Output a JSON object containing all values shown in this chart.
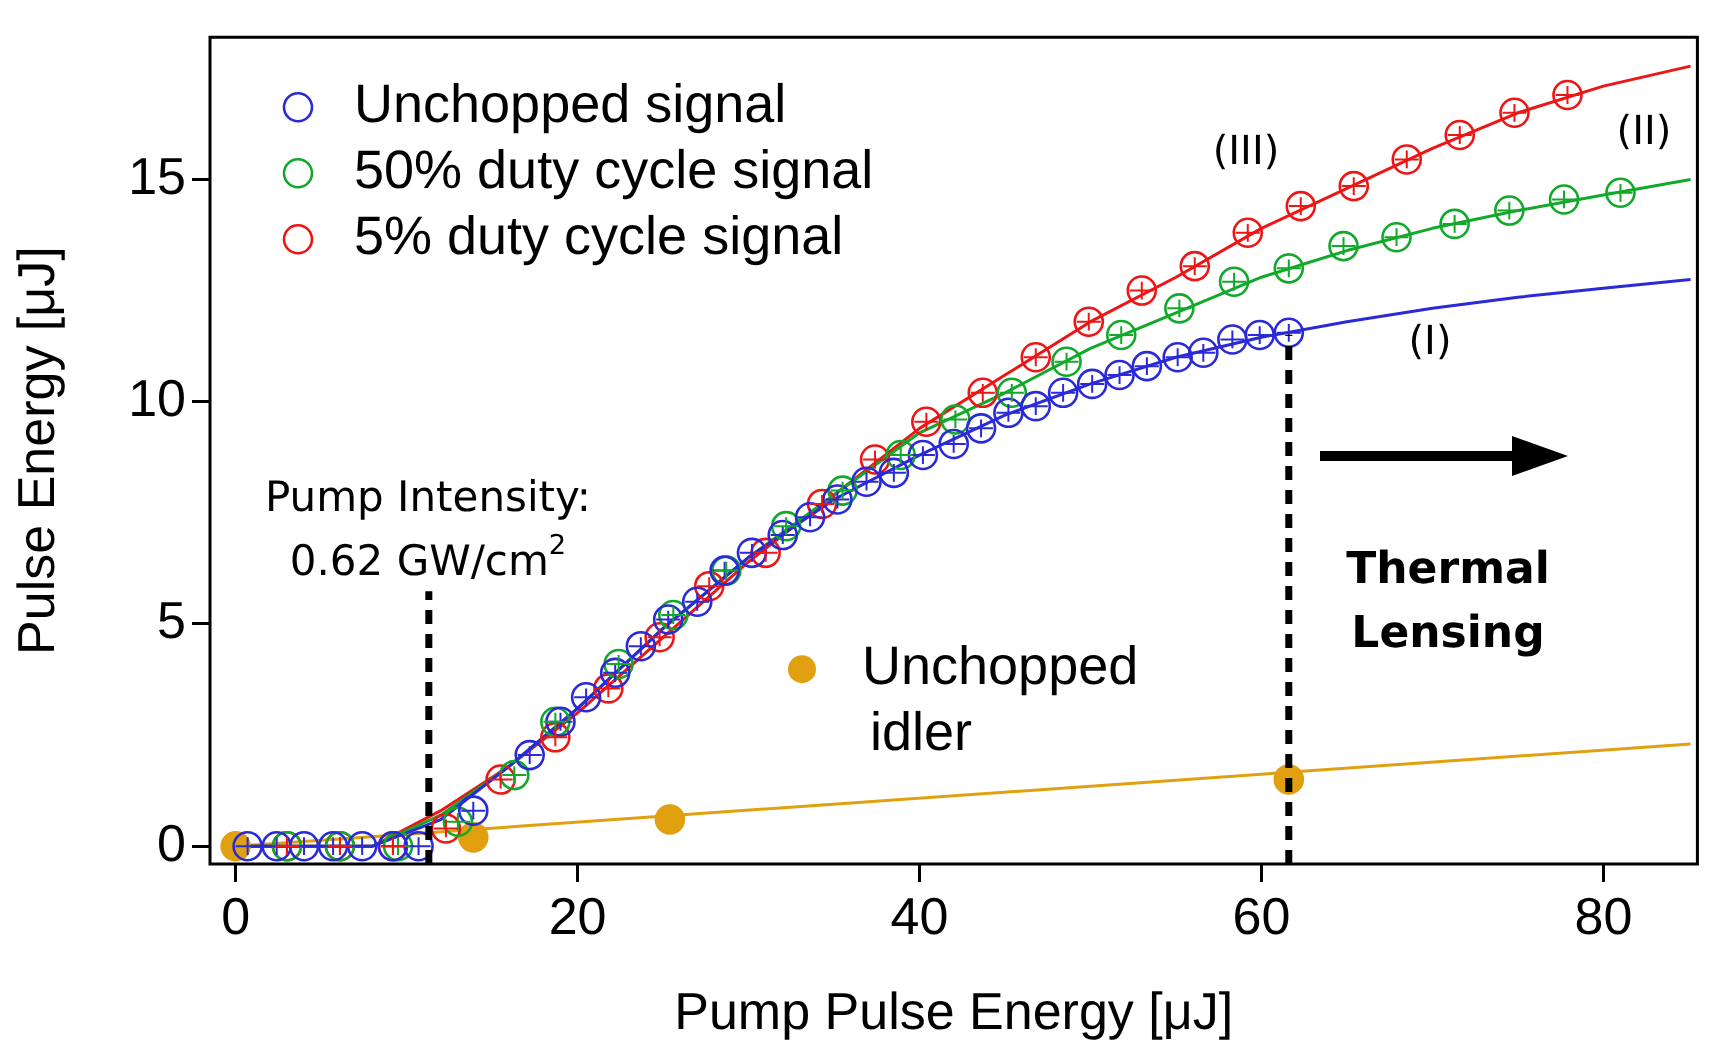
{
  "chart_data": {
    "type": "scatter",
    "xlabel": "Pump Pulse Energy [μJ]",
    "ylabel": "Pulse Energy [μJ]",
    "xlim": [
      -1.5,
      85.5
    ],
    "ylim": [
      -0.4,
      18.2
    ],
    "xticks": [
      0,
      20,
      40,
      60,
      80
    ],
    "yticks": [
      0,
      5,
      10,
      15
    ],
    "grid": false,
    "legend": "top left",
    "series": [
      {
        "name": "Unchopped signal",
        "type": "scatter",
        "marker": "circle",
        "color": "#2a2ad8",
        "x": [
          0.7,
          2.4,
          4.0,
          5.7,
          7.4,
          9.2,
          10.7,
          13.9,
          17.2,
          19.0,
          20.5,
          22.2,
          23.7,
          25.3,
          27.0,
          28.6,
          30.2,
          32.0,
          33.6,
          35.2,
          36.9,
          38.5,
          40.2,
          42.0,
          43.6,
          45.2,
          46.8,
          48.4,
          50.1,
          51.7,
          53.3,
          55.1,
          56.6,
          58.3,
          59.9,
          61.6
        ],
        "values": [
          0,
          0,
          0,
          0,
          0,
          0,
          0,
          0.8,
          2.05,
          2.8,
          3.35,
          3.9,
          4.5,
          5.1,
          5.5,
          6.2,
          6.6,
          7.0,
          7.4,
          7.8,
          8.2,
          8.4,
          8.8,
          9.05,
          9.4,
          9.75,
          9.9,
          10.2,
          10.4,
          10.6,
          10.8,
          11.0,
          11.1,
          11.4,
          11.5,
          11.55
        ],
        "errors": [
          0.2,
          0.2,
          0.2,
          0.2,
          0.2,
          0.2,
          0.2,
          0.2,
          0.2,
          0.2,
          0.2,
          0.2,
          0.2,
          0.2,
          0.2,
          0.2,
          0.2,
          0.2,
          0.2,
          0.2,
          0.2,
          0.2,
          0.2,
          0.2,
          0.2,
          0.2,
          0.2,
          0.2,
          0.2,
          0.2,
          0.2,
          0.2,
          0.2,
          0.2,
          0.2,
          0.2
        ]
      },
      {
        "name": "50% duty cycle signal",
        "type": "scatter",
        "marker": "circle",
        "color": "#12a82a",
        "x": [
          3.0,
          6.1,
          9.5,
          13.0,
          16.3,
          18.7,
          22.4,
          25.6,
          28.7,
          32.2,
          35.5,
          38.9,
          42.1,
          45.4,
          48.6,
          51.8,
          55.2,
          58.4,
          61.6,
          64.8,
          67.9,
          71.3,
          74.5,
          77.7,
          81.0
        ],
        "values": [
          0,
          0,
          0,
          0.55,
          1.6,
          2.8,
          4.1,
          5.2,
          6.2,
          7.2,
          8.0,
          8.8,
          9.6,
          10.2,
          10.9,
          11.5,
          12.1,
          12.7,
          13.0,
          13.5,
          13.7,
          14.0,
          14.3,
          14.55,
          14.7
        ],
        "errors": [
          0.2,
          0.2,
          0.2,
          0.2,
          0.2,
          0.2,
          0.2,
          0.2,
          0.2,
          0.2,
          0.2,
          0.2,
          0.2,
          0.2,
          0.2,
          0.2,
          0.2,
          0.2,
          0.2,
          0.2,
          0.2,
          0.2,
          0.2,
          0.2,
          0.2
        ]
      },
      {
        "name": "5% duty cycle signal",
        "type": "scatter",
        "marker": "circle",
        "color": "#ee1515",
        "x": [
          3.0,
          6.1,
          9.2,
          12.3,
          15.5,
          18.7,
          21.8,
          24.8,
          27.7,
          31.0,
          34.3,
          37.4,
          40.4,
          43.7,
          46.8,
          49.9,
          53.0,
          56.1,
          59.2,
          62.3,
          65.4,
          68.5,
          71.6,
          74.8,
          77.9
        ],
        "values": [
          0,
          0,
          0,
          0.4,
          1.5,
          2.45,
          3.55,
          4.7,
          5.85,
          6.6,
          7.7,
          8.7,
          9.55,
          10.2,
          11.0,
          11.8,
          12.5,
          13.05,
          13.8,
          14.4,
          14.85,
          15.45,
          16.0,
          16.5,
          16.9
        ],
        "errors": [
          0.2,
          0.2,
          0.2,
          0.2,
          0.2,
          0.2,
          0.2,
          0.2,
          0.2,
          0.2,
          0.2,
          0.2,
          0.2,
          0.2,
          0.2,
          0.2,
          0.2,
          0.2,
          0.2,
          0.2,
          0.2,
          0.2,
          0.2,
          0.2,
          0.2
        ]
      },
      {
        "type": "line",
        "marker": "none",
        "color": "#2a2ad8",
        "x": [
          0,
          8,
          12,
          16,
          20,
          25,
          30,
          35,
          40,
          45,
          50,
          55,
          60,
          65,
          70,
          75,
          80,
          85.1
        ],
        "values": [
          0,
          0,
          0.6,
          1.8,
          3.1,
          4.9,
          6.5,
          7.8,
          8.8,
          9.7,
          10.4,
          11.0,
          11.45,
          11.8,
          12.1,
          12.35,
          12.55,
          12.75
        ]
      },
      {
        "type": "line",
        "marker": "none",
        "color": "#12a82a",
        "x": [
          0,
          8,
          12,
          16,
          20,
          25,
          30,
          35,
          40,
          45,
          50,
          55,
          60,
          65,
          70,
          75,
          80,
          85.1
        ],
        "values": [
          0,
          0,
          0.7,
          1.8,
          3.1,
          4.9,
          6.5,
          7.9,
          9.3,
          10.2,
          11.2,
          12.0,
          12.8,
          13.4,
          13.9,
          14.3,
          14.65,
          15.0
        ]
      },
      {
        "type": "line",
        "marker": "none",
        "color": "#ee1515",
        "x": [
          0,
          8,
          12,
          16,
          20,
          25,
          30,
          35,
          40,
          45,
          50,
          55,
          60,
          65,
          70,
          75,
          80,
          85.1
        ],
        "values": [
          0,
          0,
          0.8,
          1.8,
          3.0,
          4.7,
          6.4,
          7.9,
          9.4,
          10.6,
          11.8,
          12.8,
          13.9,
          14.8,
          15.7,
          16.5,
          17.1,
          17.55
        ]
      },
      {
        "type": "line",
        "marker": "none",
        "color": "#e0a010",
        "x": [
          0,
          85.1
        ],
        "values": [
          0,
          2.3
        ]
      },
      {
        "name": "Unchopped idler",
        "type": "scatter",
        "marker": "circle",
        "color": "#e0a010",
        "x": [
          0,
          13.9,
          25.4,
          61.6
        ],
        "values": [
          0,
          0.2,
          0.6,
          1.5
        ]
      }
    ],
    "ref_lines": [
      {
        "axis": "x",
        "value": 11.3,
        "line_style": "dashed",
        "color": "#000000"
      },
      {
        "axis": "x",
        "value": 61.6,
        "line_style": "dashed",
        "color": "#000000"
      }
    ],
    "annotations": [
      "Pump Intensity: 0.62 GW/cm$^{2}$",
      "Thermal Lensing",
      "(III)",
      "(II)",
      "(I)"
    ]
  }
}
